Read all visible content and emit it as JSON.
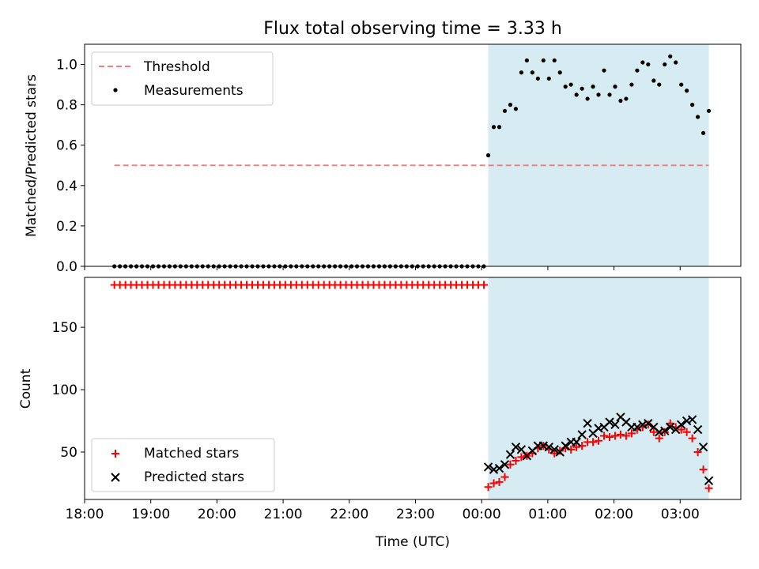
{
  "chart_data": [
    {
      "type": "scatter",
      "title": "Flux total observing time = 3.33 h",
      "ylabel": "Matched/Predicted stars",
      "ylim": [
        0,
        1.1
      ],
      "yticks": [
        "0.0",
        "0.2",
        "0.4",
        "0.6",
        "0.8",
        "1.0"
      ],
      "shaded_span": [
        "00:06",
        "03:26"
      ],
      "legend_position": "upper-left",
      "threshold": {
        "name": "Threshold",
        "value": 0.5,
        "x_start": "18:27",
        "x_end": "03:26",
        "color": "#f08080"
      },
      "series": [
        {
          "name": "Measurements",
          "color": "#000000",
          "marker": "dot",
          "zero_points": {
            "x_start": "18:27",
            "x_end": "00:02",
            "step_minutes": 5,
            "value": 0.0
          },
          "points": [
            [
              "00:06",
              0.55
            ],
            [
              "00:11",
              0.69
            ],
            [
              "00:16",
              0.69
            ],
            [
              "00:21",
              0.77
            ],
            [
              "00:26",
              0.8
            ],
            [
              "00:31",
              0.78
            ],
            [
              "00:36",
              0.96
            ],
            [
              "00:41",
              1.02
            ],
            [
              "00:46",
              0.96
            ],
            [
              "00:51",
              0.93
            ],
            [
              "00:56",
              1.02
            ],
            [
              "01:01",
              0.93
            ],
            [
              "01:06",
              1.02
            ],
            [
              "01:11",
              0.96
            ],
            [
              "01:16",
              0.89
            ],
            [
              "01:21",
              0.9
            ],
            [
              "01:26",
              0.85
            ],
            [
              "01:31",
              0.88
            ],
            [
              "01:36",
              0.83
            ],
            [
              "01:41",
              0.89
            ],
            [
              "01:46",
              0.85
            ],
            [
              "01:51",
              0.97
            ],
            [
              "01:56",
              0.85
            ],
            [
              "02:01",
              0.89
            ],
            [
              "02:06",
              0.82
            ],
            [
              "02:11",
              0.83
            ],
            [
              "02:16",
              0.9
            ],
            [
              "02:21",
              0.97
            ],
            [
              "02:26",
              1.01
            ],
            [
              "02:31",
              1.0
            ],
            [
              "02:36",
              0.92
            ],
            [
              "02:41",
              0.9
            ],
            [
              "02:46",
              1.0
            ],
            [
              "02:51",
              1.04
            ],
            [
              "02:56",
              1.01
            ],
            [
              "03:01",
              0.9
            ],
            [
              "03:06",
              0.87
            ],
            [
              "03:11",
              0.8
            ],
            [
              "03:16",
              0.74
            ],
            [
              "03:21",
              0.66
            ],
            [
              "03:26",
              0.77
            ]
          ]
        }
      ]
    },
    {
      "type": "scatter",
      "xlabel": "Time (UTC)",
      "ylabel": "Count",
      "ylim": [
        12,
        190
      ],
      "yticks": [
        "50",
        "100",
        "150"
      ],
      "xticks": [
        "18:00",
        "19:00",
        "20:00",
        "21:00",
        "22:00",
        "23:00",
        "00:00",
        "01:00",
        "02:00",
        "03:00"
      ],
      "shaded_span": [
        "00:06",
        "03:26"
      ],
      "legend_position": "lower-left",
      "series": [
        {
          "name": "Matched stars",
          "color": "#ff0000",
          "marker": "plus",
          "constant_points": {
            "x_start": "18:27",
            "x_end": "00:02",
            "step_minutes": 5,
            "value": 184
          },
          "points": [
            [
              "00:06",
              22
            ],
            [
              "00:11",
              25
            ],
            [
              "00:16",
              26
            ],
            [
              "00:21",
              30
            ],
            [
              "00:26",
              40
            ],
            [
              "00:31",
              43
            ],
            [
              "00:36",
              46
            ],
            [
              "00:41",
              47
            ],
            [
              "00:46",
              49
            ],
            [
              "00:51",
              53
            ],
            [
              "00:56",
              55
            ],
            [
              "01:01",
              52
            ],
            [
              "01:06",
              49
            ],
            [
              "01:11",
              51
            ],
            [
              "01:16",
              53
            ],
            [
              "01:21",
              52
            ],
            [
              "01:26",
              54
            ],
            [
              "01:31",
              55
            ],
            [
              "01:36",
              58
            ],
            [
              "01:41",
              58
            ],
            [
              "01:46",
              59
            ],
            [
              "01:51",
              63
            ],
            [
              "01:56",
              62
            ],
            [
              "02:01",
              63
            ],
            [
              "02:06",
              64
            ],
            [
              "02:11",
              63
            ],
            [
              "02:16",
              65
            ],
            [
              "02:21",
              68
            ],
            [
              "02:26",
              70
            ],
            [
              "02:31",
              72
            ],
            [
              "02:36",
              66
            ],
            [
              "02:41",
              61
            ],
            [
              "02:46",
              66
            ],
            [
              "02:51",
              73
            ],
            [
              "02:56",
              70
            ],
            [
              "03:01",
              68
            ],
            [
              "03:06",
              66
            ],
            [
              "03:11",
              61
            ],
            [
              "03:16",
              50
            ],
            [
              "03:21",
              36
            ],
            [
              "03:26",
              21
            ]
          ]
        },
        {
          "name": "Predicted stars",
          "color": "#000000",
          "marker": "cross",
          "points": [
            [
              "00:06",
              38
            ],
            [
              "00:11",
              36
            ],
            [
              "00:16",
              37
            ],
            [
              "00:21",
              40
            ],
            [
              "00:26",
              48
            ],
            [
              "00:31",
              54
            ],
            [
              "00:36",
              52
            ],
            [
              "00:41",
              47
            ],
            [
              "00:46",
              51
            ],
            [
              "00:51",
              55
            ],
            [
              "00:56",
              55
            ],
            [
              "01:01",
              54
            ],
            [
              "01:06",
              52
            ],
            [
              "01:11",
              50
            ],
            [
              "01:16",
              55
            ],
            [
              "01:21",
              58
            ],
            [
              "01:26",
              58
            ],
            [
              "01:31",
              64
            ],
            [
              "01:36",
              73
            ],
            [
              "01:41",
              65
            ],
            [
              "01:46",
              69
            ],
            [
              "01:51",
              70
            ],
            [
              "01:56",
              74
            ],
            [
              "02:01",
              72
            ],
            [
              "02:06",
              78
            ],
            [
              "02:11",
              74
            ],
            [
              "02:16",
              70
            ],
            [
              "02:21",
              70
            ],
            [
              "02:26",
              72
            ],
            [
              "02:31",
              73
            ],
            [
              "02:36",
              70
            ],
            [
              "02:41",
              66
            ],
            [
              "02:46",
              67
            ],
            [
              "02:51",
              70
            ],
            [
              "02:56",
              68
            ],
            [
              "03:01",
              72
            ],
            [
              "03:06",
              75
            ],
            [
              "03:11",
              76
            ],
            [
              "03:16",
              68
            ],
            [
              "03:21",
              54
            ],
            [
              "03:26",
              27
            ]
          ]
        }
      ]
    }
  ]
}
